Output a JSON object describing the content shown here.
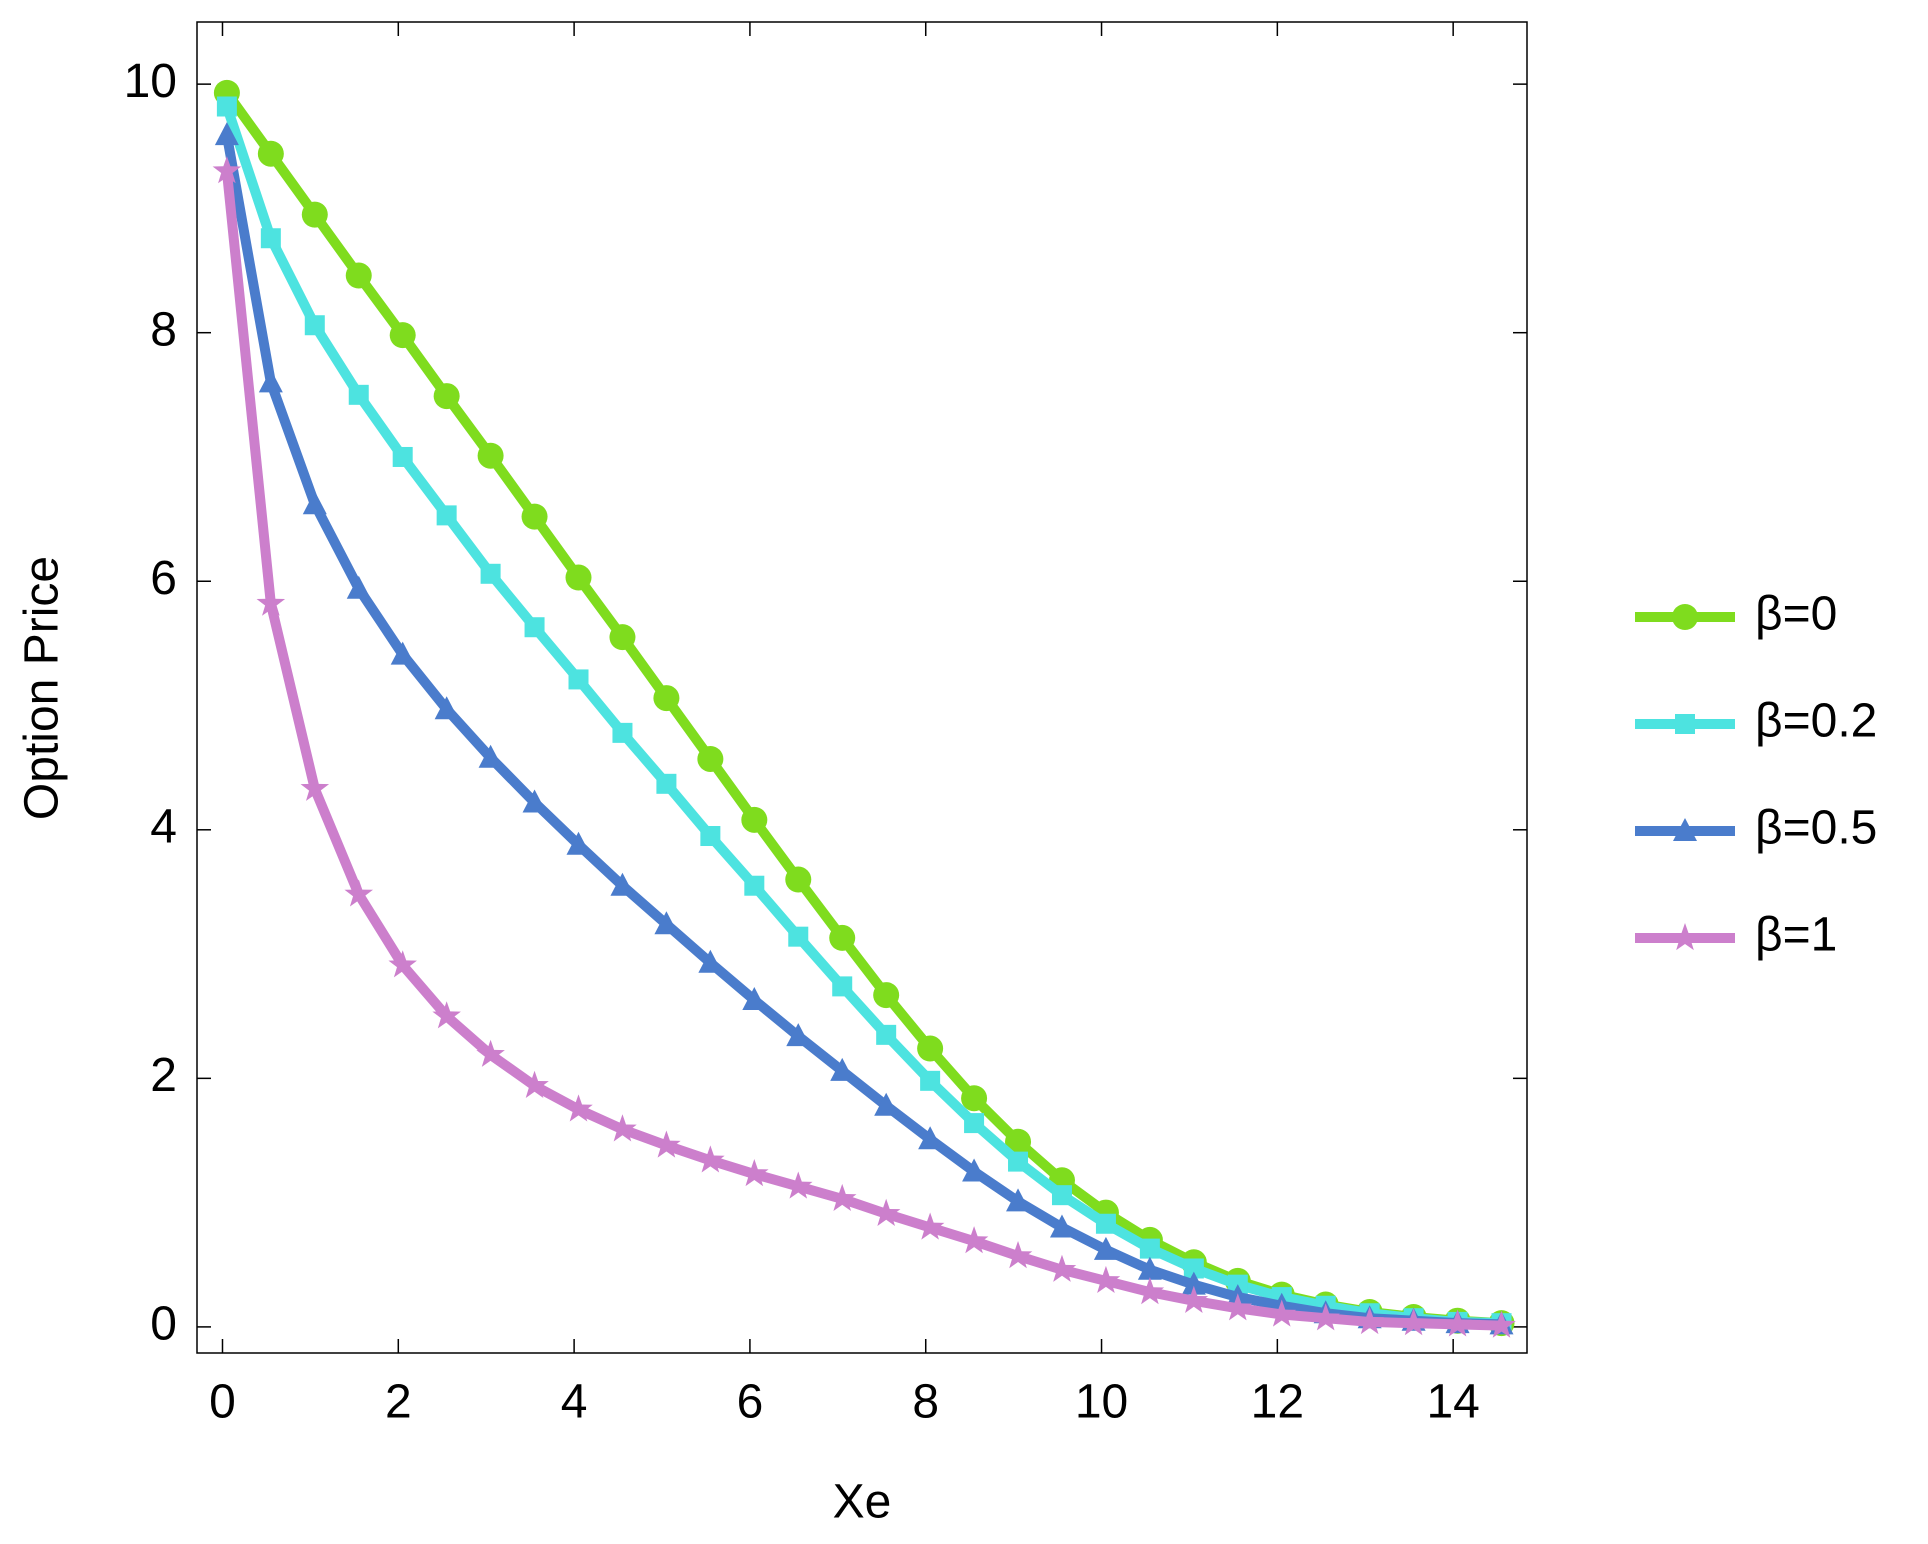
{
  "chart_data": {
    "type": "line",
    "x_label": "Xe",
    "y_label": "Option Price",
    "x": [
      0.05,
      0.55,
      1.05,
      1.55,
      2.05,
      2.55,
      3.05,
      3.55,
      4.05,
      4.55,
      5.05,
      5.55,
      6.05,
      6.55,
      7.05,
      7.55,
      8.05,
      8.55,
      9.05,
      9.55,
      10.05,
      10.55,
      11.05,
      11.55,
      12.05,
      12.55,
      13.05,
      13.55,
      14.05,
      14.55
    ],
    "series": [
      {
        "name": "β=0",
        "color": "#7fdc1e",
        "marker": "circle",
        "values": [
          9.93,
          9.44,
          8.95,
          8.46,
          7.98,
          7.49,
          7.01,
          6.52,
          6.03,
          5.55,
          5.06,
          4.57,
          4.08,
          3.6,
          3.13,
          2.67,
          2.24,
          1.84,
          1.49,
          1.18,
          0.92,
          0.7,
          0.52,
          0.37,
          0.26,
          0.18,
          0.12,
          0.08,
          0.05,
          0.03
        ]
      },
      {
        "name": "β=0.2",
        "color": "#4de3e0",
        "marker": "square",
        "values": [
          9.82,
          8.76,
          8.06,
          7.5,
          7.0,
          6.53,
          6.06,
          5.63,
          5.21,
          4.78,
          4.37,
          3.95,
          3.55,
          3.14,
          2.74,
          2.35,
          1.98,
          1.64,
          1.33,
          1.06,
          0.83,
          0.63,
          0.47,
          0.34,
          0.24,
          0.17,
          0.11,
          0.07,
          0.04,
          0.03
        ]
      },
      {
        "name": "β=0.5",
        "color": "#4a7ccc",
        "marker": "triangle",
        "values": [
          9.59,
          7.6,
          6.62,
          5.94,
          5.41,
          4.97,
          4.58,
          4.22,
          3.88,
          3.55,
          3.24,
          2.93,
          2.63,
          2.34,
          2.06,
          1.78,
          1.51,
          1.25,
          1.01,
          0.8,
          0.62,
          0.46,
          0.34,
          0.24,
          0.17,
          0.11,
          0.07,
          0.05,
          0.03,
          0.02
        ]
      },
      {
        "name": "β=1",
        "color": "#cc7fcc",
        "marker": "star",
        "values": [
          9.3,
          5.82,
          4.33,
          3.48,
          2.91,
          2.5,
          2.19,
          1.94,
          1.75,
          1.59,
          1.46,
          1.34,
          1.23,
          1.13,
          1.03,
          0.91,
          0.8,
          0.69,
          0.57,
          0.46,
          0.37,
          0.28,
          0.21,
          0.15,
          0.1,
          0.07,
          0.04,
          0.03,
          0.02,
          0.01
        ]
      }
    ],
    "xlim": [
      -0.29,
      14.84
    ],
    "ylim": [
      -0.21,
      10.5
    ],
    "xticks": [
      0,
      2,
      4,
      6,
      8,
      10,
      12,
      14
    ],
    "yticks": [
      0,
      2,
      4,
      6,
      8,
      10
    ],
    "legend": "right"
  }
}
